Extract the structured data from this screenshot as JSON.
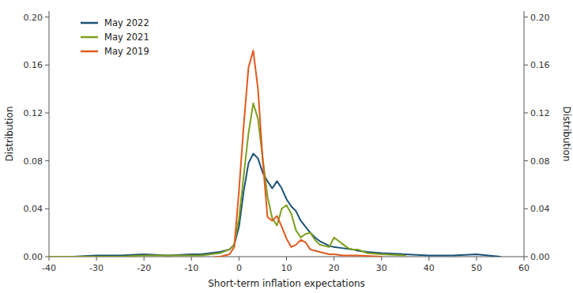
{
  "chart_data": {
    "type": "line",
    "xlabel": "Short-term inflation expectations",
    "ylabel": "Distribution",
    "y2label": "Distribution",
    "xlim": [
      -40,
      60
    ],
    "xticks": [
      -40,
      -30,
      -20,
      -10,
      0,
      10,
      20,
      30,
      40,
      50,
      60
    ],
    "ylim": [
      0.0,
      0.205
    ],
    "yticks": [
      {
        "value": 0.0,
        "label": "0.00"
      },
      0.04,
      0.08,
      0.12,
      0.16,
      {
        "value": 0.2,
        "label": "0.20"
      }
    ],
    "y2lim": [
      0.0,
      0.205
    ],
    "y2ticks": [
      {
        "value": 0.0,
        "label": "0.00"
      },
      0.04,
      0.08,
      0.12,
      0.16,
      {
        "value": 0.2,
        "label": "0.20"
      }
    ],
    "grid": false,
    "legend": "upper left",
    "series": [
      {
        "name": "May 2022",
        "color": "#1a5276",
        "x": [
          -40,
          -35,
          -30,
          -25,
          -20,
          -15,
          -10,
          -8,
          -6,
          -4,
          -2,
          -1,
          0,
          1,
          2,
          3,
          4,
          5,
          6,
          7,
          8,
          9,
          10,
          11,
          12,
          13,
          14,
          15,
          16,
          17,
          18,
          19,
          20,
          22,
          24,
          25,
          27,
          30,
          35,
          40,
          42,
          45,
          50,
          55
        ],
        "values": [
          0.0,
          0.0,
          0.001,
          0.001,
          0.002,
          0.001,
          0.002,
          0.002,
          0.003,
          0.004,
          0.006,
          0.01,
          0.025,
          0.055,
          0.078,
          0.086,
          0.082,
          0.07,
          0.063,
          0.057,
          0.063,
          0.057,
          0.048,
          0.042,
          0.038,
          0.03,
          0.025,
          0.02,
          0.016,
          0.013,
          0.011,
          0.009,
          0.008,
          0.007,
          0.006,
          0.005,
          0.004,
          0.003,
          0.002,
          0.001,
          0.001,
          0.001,
          0.002,
          0.0
        ]
      },
      {
        "name": "May 2021",
        "color": "#7d9e1d",
        "x": [
          -40,
          -35,
          -30,
          -25,
          -20,
          -15,
          -10,
          -8,
          -6,
          -4,
          -2,
          -1,
          0,
          1,
          2,
          3,
          4,
          5,
          6,
          7,
          8,
          9,
          10,
          11,
          12,
          13,
          14,
          15,
          16,
          17,
          18,
          19,
          20,
          21,
          22,
          23,
          24,
          25,
          27,
          30,
          35
        ],
        "values": [
          0.0,
          0.0,
          0.0,
          0.0,
          0.001,
          0.001,
          0.001,
          0.001,
          0.002,
          0.003,
          0.006,
          0.01,
          0.032,
          0.068,
          0.103,
          0.128,
          0.115,
          0.082,
          0.05,
          0.032,
          0.026,
          0.04,
          0.043,
          0.036,
          0.022,
          0.016,
          0.019,
          0.02,
          0.014,
          0.01,
          0.009,
          0.008,
          0.016,
          0.013,
          0.01,
          0.007,
          0.006,
          0.006,
          0.003,
          0.002,
          0.001
        ]
      },
      {
        "name": "May 2019",
        "color": "#e05a1e",
        "x": [
          -5,
          -4,
          -3,
          -2,
          -1,
          0,
          1,
          2,
          3,
          4,
          5,
          6,
          7,
          8,
          9,
          10,
          11,
          12,
          13,
          14,
          15,
          16,
          17,
          18,
          19,
          20,
          22,
          25,
          30
        ],
        "values": [
          0.0,
          0.0,
          0.001,
          0.002,
          0.008,
          0.055,
          0.11,
          0.158,
          0.172,
          0.14,
          0.08,
          0.033,
          0.03,
          0.034,
          0.025,
          0.015,
          0.008,
          0.01,
          0.014,
          0.012,
          0.006,
          0.005,
          0.004,
          0.003,
          0.002,
          0.002,
          0.001,
          0.001,
          0.0
        ]
      }
    ]
  }
}
